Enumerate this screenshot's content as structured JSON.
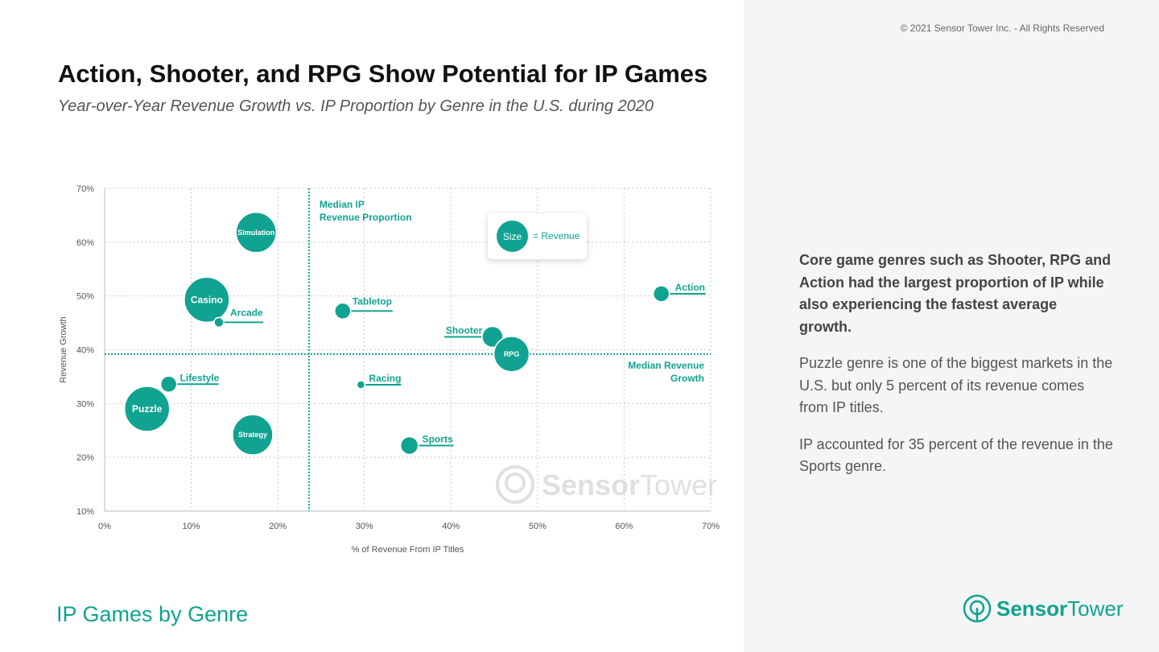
{
  "copyright": "© 2021 Sensor Tower Inc. - All Rights Reserved",
  "title": "Action, Shooter, and RPG Show Potential for IP Games",
  "subtitle": "Year-over-Year Revenue Growth vs. IP Proportion by Genre in the U.S. during 2020",
  "footer": "IP Games by Genre",
  "notes": [
    "Core game genres such as Shooter, RPG and Action had the largest proportion of IP while also experiencing the fastest average growth.",
    "Puzzle genre is one of the biggest markets in the U.S. but only 5 percent of its revenue comes from IP titles.",
    "IP accounted for 35 percent of the revenue in the Sports genre."
  ],
  "logo": {
    "brand_bold": "Sensor",
    "brand_light": "Tower"
  },
  "colors": {
    "accent": "#10a391",
    "grid": "#c8c8c8",
    "panel": "#f5f5f5"
  },
  "chart_data": {
    "type": "scatter",
    "subtype": "bubble",
    "xlabel": "% of Revenue From IP Titles",
    "ylabel": "Revenue Growth",
    "xlim": [
      0,
      70
    ],
    "ylim": [
      10,
      70
    ],
    "xticks": [
      "0%",
      "10%",
      "20%",
      "30%",
      "40%",
      "50%",
      "60%",
      "70%"
    ],
    "yticks": [
      "10%",
      "20%",
      "30%",
      "40%",
      "50%",
      "60%",
      "70%"
    ],
    "grid": true,
    "legend": {
      "size_label": "Size",
      "text": "= Revenue",
      "placement": "top-center"
    },
    "reference_lines": {
      "median_x": {
        "value": 23.6,
        "label_lines": [
          "Median IP",
          "Revenue Proportion"
        ]
      },
      "median_y": {
        "value": 39.2,
        "label_lines": [
          "Median Revenue",
          "Growth"
        ]
      }
    },
    "points": [
      {
        "name": "Simulation",
        "x": 17.5,
        "y": 61.8,
        "size": 25,
        "label_inside": true
      },
      {
        "name": "Casino",
        "x": 11.8,
        "y": 49.3,
        "size": 28,
        "label_inside": true
      },
      {
        "name": "Arcade",
        "x": 13.2,
        "y": 45.1,
        "size": 6,
        "label_inside": false
      },
      {
        "name": "Tabletop",
        "x": 27.5,
        "y": 47.2,
        "size": 10,
        "label_inside": false
      },
      {
        "name": "Shooter",
        "x": 44.8,
        "y": 42.4,
        "size": 13,
        "label_inside": false
      },
      {
        "name": "RPG",
        "x": 47.0,
        "y": 39.2,
        "size": 22,
        "label_inside": true
      },
      {
        "name": "Action",
        "x": 64.3,
        "y": 50.4,
        "size": 10,
        "label_inside": false
      },
      {
        "name": "Lifestyle",
        "x": 7.4,
        "y": 33.6,
        "size": 10,
        "label_inside": false
      },
      {
        "name": "Racing",
        "x": 29.6,
        "y": 33.5,
        "size": 5,
        "label_inside": false
      },
      {
        "name": "Puzzle",
        "x": 4.9,
        "y": 29.0,
        "size": 28,
        "label_inside": true
      },
      {
        "name": "Strategy",
        "x": 17.1,
        "y": 24.2,
        "size": 25,
        "label_inside": true
      },
      {
        "name": "Sports",
        "x": 35.2,
        "y": 22.2,
        "size": 11,
        "label_inside": false
      }
    ]
  }
}
